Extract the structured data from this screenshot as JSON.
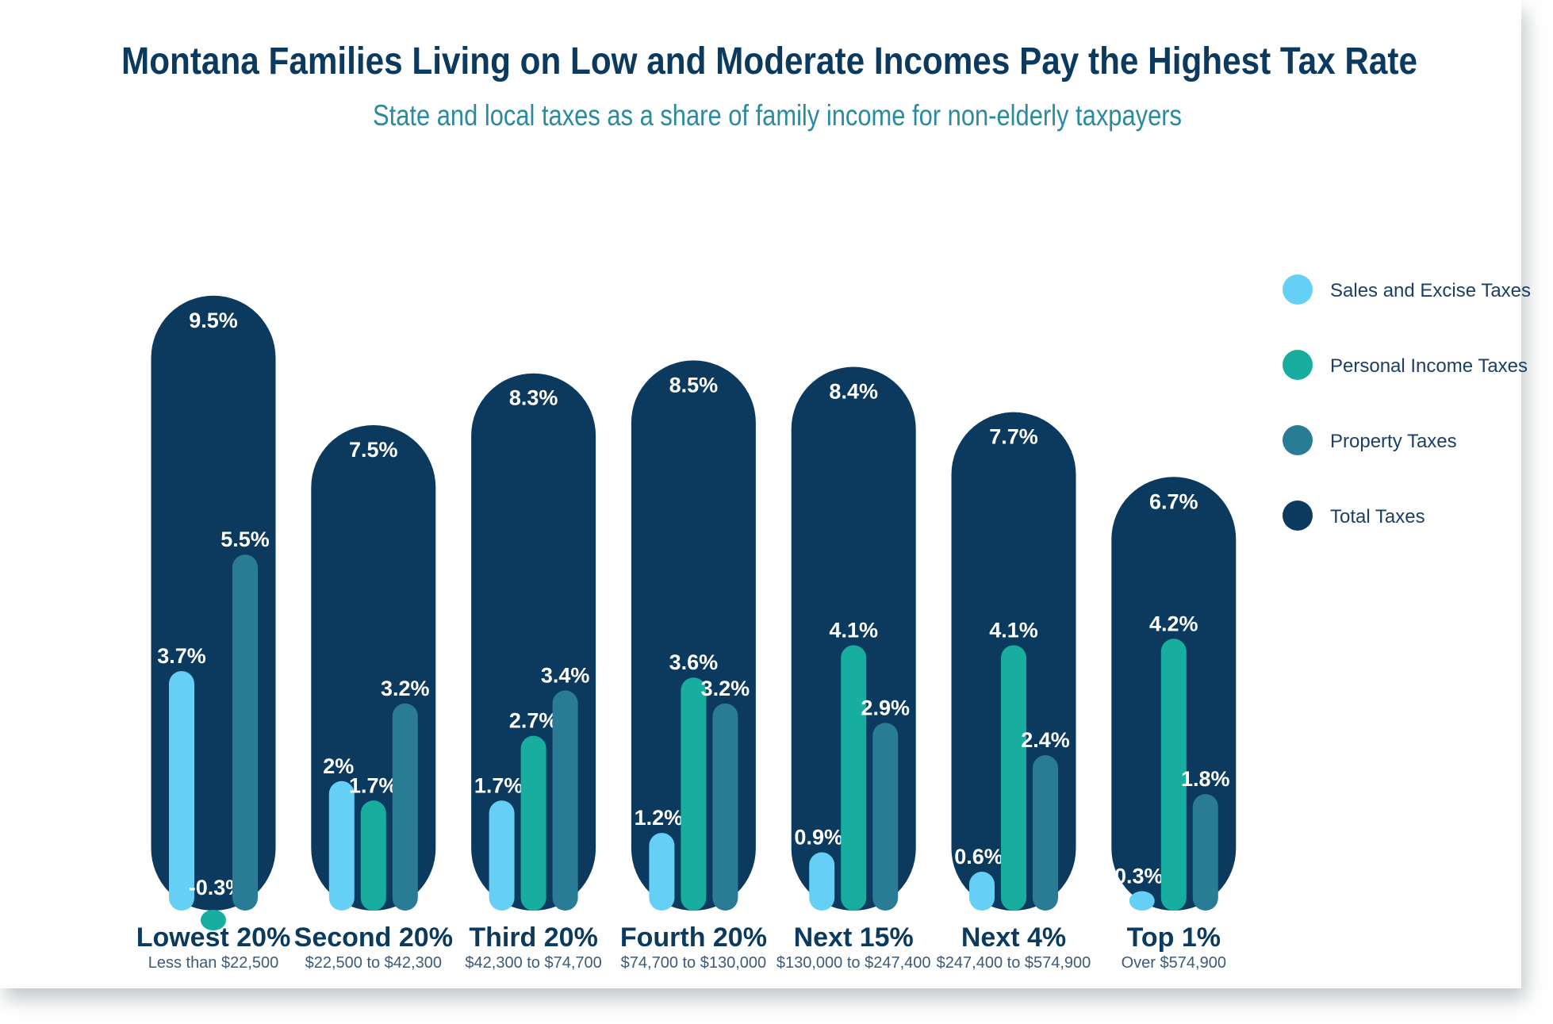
{
  "chart_data": {
    "type": "bar",
    "title": "Montana Families Living on Low and Moderate Incomes Pay the Highest Tax Rate",
    "subtitle": "State and local taxes as a share of family income for non-elderly taxpayers",
    "categories": [
      "Lowest 20%",
      "Second 20%",
      "Third 20%",
      "Fourth 20%",
      "Next 15%",
      "Next 4%",
      "Top 1%"
    ],
    "category_sublabels": [
      "Less than $22,500",
      "$22,500 to $42,300",
      "$42,300 to $74,700",
      "$74,700 to $130,000",
      "$130,000 to $247,400",
      "$247,400 to $574,900",
      "Over $574,900"
    ],
    "series": [
      {
        "name": "Sales and Excise Taxes",
        "color": "#66cff5",
        "values": [
          3.7,
          2,
          1.7,
          1.2,
          0.9,
          0.6,
          0.3
        ],
        "labels": [
          "3.7%",
          "2%",
          "1.7%",
          "1.2%",
          "0.9%",
          "0.6%",
          "0.3%"
        ]
      },
      {
        "name": "Personal Income Taxes",
        "color": "#17ae9f",
        "values": [
          -0.3,
          1.7,
          2.7,
          3.6,
          4.1,
          4.1,
          4.2
        ],
        "labels": [
          "-0.3%",
          "1.7%",
          "2.7%",
          "3.6%",
          "4.1%",
          "4.1%",
          "4.2%"
        ]
      },
      {
        "name": "Property Taxes",
        "color": "#2a7c96",
        "values": [
          5.5,
          3.2,
          3.4,
          3.2,
          2.9,
          2.4,
          1.8
        ],
        "labels": [
          "5.5%",
          "3.2%",
          "3.4%",
          "3.2%",
          "2.9%",
          "2.4%",
          "1.8%"
        ]
      },
      {
        "name": "Total Taxes",
        "color": "#0b3a5e",
        "values": [
          9.5,
          7.5,
          8.3,
          8.5,
          8.4,
          7.7,
          6.7
        ],
        "labels": [
          "9.5%",
          "7.5%",
          "8.3%",
          "8.5%",
          "8.4%",
          "7.7%",
          "6.7%"
        ]
      }
    ],
    "legend_position": "right",
    "grid": false,
    "colors": {
      "title": "#0b3a5e",
      "subtitle": "#2a8a9e"
    }
  }
}
